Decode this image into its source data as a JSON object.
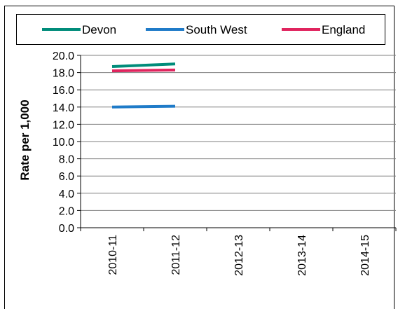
{
  "chart_data": {
    "type": "line",
    "title": "",
    "ylabel": "Rate per 1,000",
    "xlabel": "",
    "categories": [
      "2010-11",
      "2011-12",
      "2012-13",
      "2013-14",
      "2014-15"
    ],
    "yticks": [
      "0.0",
      "2.0",
      "4.0",
      "6.0",
      "8.0",
      "10.0",
      "12.0",
      "14.0",
      "16.0",
      "18.0",
      "20.0"
    ],
    "ylim": [
      0,
      20
    ],
    "grid": true,
    "legend_position": "top",
    "series": [
      {
        "name": "Devon",
        "color": "#008C7A",
        "values": [
          18.7,
          19.0,
          null,
          null,
          null
        ]
      },
      {
        "name": "South West",
        "color": "#1F7BC8",
        "values": [
          14.0,
          14.1,
          null,
          null,
          null
        ]
      },
      {
        "name": "England",
        "color": "#E0245E",
        "values": [
          18.2,
          18.3,
          null,
          null,
          null
        ]
      }
    ]
  }
}
